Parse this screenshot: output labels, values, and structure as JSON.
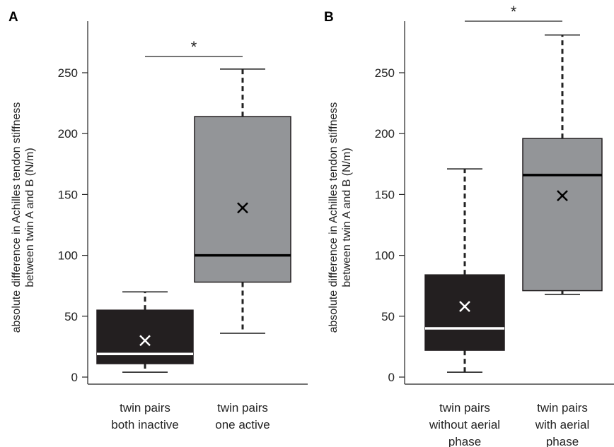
{
  "chart_data": [
    {
      "type": "box",
      "panel": "A",
      "ylabel_lines": [
        "absolute difference in Achilles tendon stiffness",
        "between twin A and B (N/m)"
      ],
      "ylim": [
        0,
        280
      ],
      "yticks": [
        0,
        50,
        100,
        150,
        200,
        250
      ],
      "significance": "*",
      "boxes": [
        {
          "label_lines": [
            "twin pairs",
            "both inactive"
          ],
          "color": "#231f20",
          "median_color": "#ffffff",
          "min": 4,
          "q1": 11,
          "median": 19,
          "q3": 55,
          "max": 70,
          "mean": 30,
          "mean_color": "#ffffff"
        },
        {
          "label_lines": [
            "twin pairs",
            "one active"
          ],
          "color": "#939598",
          "median_color": "#000000",
          "min": 36,
          "q1": 78,
          "median": 100,
          "q3": 214,
          "max": 253,
          "mean": 139,
          "mean_color": "#000000"
        }
      ]
    },
    {
      "type": "box",
      "panel": "B",
      "ylabel_lines": [
        "absolute difference in Achilles tendon stiffness",
        "between twin A and B (N/m)"
      ],
      "ylim": [
        0,
        290
      ],
      "yticks": [
        0,
        50,
        100,
        150,
        200,
        250
      ],
      "significance": "*",
      "boxes": [
        {
          "label_lines": [
            "twin pairs",
            "without aerial",
            "phase"
          ],
          "color": "#231f20",
          "median_color": "#ffffff",
          "min": 4,
          "q1": 22,
          "median": 40,
          "q3": 84,
          "max": 171,
          "mean": 58,
          "mean_color": "#ffffff"
        },
        {
          "label_lines": [
            "twin pairs",
            "with aerial",
            "phase"
          ],
          "color": "#939598",
          "median_color": "#000000",
          "min": 68,
          "q1": 71,
          "median": 166,
          "q3": 196,
          "max": 281,
          "mean": 149,
          "mean_color": "#000000"
        }
      ]
    }
  ]
}
